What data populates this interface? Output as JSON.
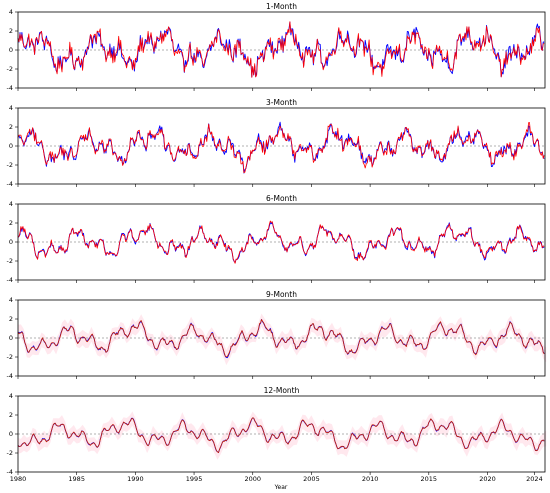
{
  "figure": {
    "xlabel": "Year",
    "x_tick_labels": [
      "1980",
      "1985",
      "1990",
      "1995",
      "2000",
      "2005",
      "2010",
      "2015",
      "2020",
      "2024"
    ]
  },
  "chart_data": [
    {
      "type": "line",
      "title": "1-Month",
      "xlim": [
        1980,
        2024.9
      ],
      "ylim": [
        -4,
        4
      ],
      "y_ticks": [
        4,
        2,
        0,
        -2,
        -4
      ],
      "grid": false,
      "reference_line": 0,
      "series": [
        {
          "color": "#0000ff",
          "amplitude": 1.3,
          "noise": 0.75,
          "seed": 11
        },
        {
          "color": "#ff0000",
          "amplitude": 1.3,
          "noise": 0.75,
          "seed": 12
        }
      ]
    },
    {
      "type": "line",
      "title": "3-Month",
      "xlim": [
        1980,
        2024.9
      ],
      "ylim": [
        -4,
        4
      ],
      "y_ticks": [
        4,
        2,
        0,
        -2,
        -4
      ],
      "grid": false,
      "reference_line": 0,
      "series": [
        {
          "color": "#0000ff",
          "amplitude": 1.2,
          "noise": 0.55,
          "seed": 21
        },
        {
          "color": "#ff0000",
          "amplitude": 1.2,
          "noise": 0.55,
          "seed": 22
        }
      ]
    },
    {
      "type": "line",
      "title": "6-Month",
      "xlim": [
        1980,
        2024.9
      ],
      "ylim": [
        -4,
        4
      ],
      "y_ticks": [
        4,
        2,
        0,
        -2,
        -4
      ],
      "grid": false,
      "reference_line": 0,
      "series": [
        {
          "color": "#0000ff",
          "amplitude": 1.1,
          "noise": 0.3,
          "seed": 31
        },
        {
          "color": "#ff0000",
          "amplitude": 1.1,
          "noise": 0.3,
          "seed": 32
        }
      ]
    },
    {
      "type": "line",
      "title": "9-Month",
      "xlim": [
        1980,
        2024.9
      ],
      "ylim": [
        -4,
        4
      ],
      "y_ticks": [
        4,
        2,
        0,
        -2,
        -4
      ],
      "grid": false,
      "reference_line": 0,
      "band_color": "#ffd6e0",
      "series": [
        {
          "color": "#0000ff",
          "amplitude": 1.05,
          "noise": 0.12,
          "seed": 41
        },
        {
          "color": "#cc2200",
          "amplitude": 1.05,
          "noise": 0.12,
          "seed": 42
        }
      ]
    },
    {
      "type": "line",
      "title": "12-Month",
      "xlim": [
        1980,
        2024.9
      ],
      "ylim": [
        -4,
        4
      ],
      "y_ticks": [
        4,
        2,
        0,
        -2,
        -4
      ],
      "grid": false,
      "reference_line": 0,
      "band_color": "#ffd6e0",
      "series": [
        {
          "color": "#0000ff",
          "amplitude": 1.0,
          "noise": 0.08,
          "seed": 51
        },
        {
          "color": "#cc2200",
          "amplitude": 1.0,
          "noise": 0.08,
          "seed": 52
        }
      ]
    }
  ]
}
